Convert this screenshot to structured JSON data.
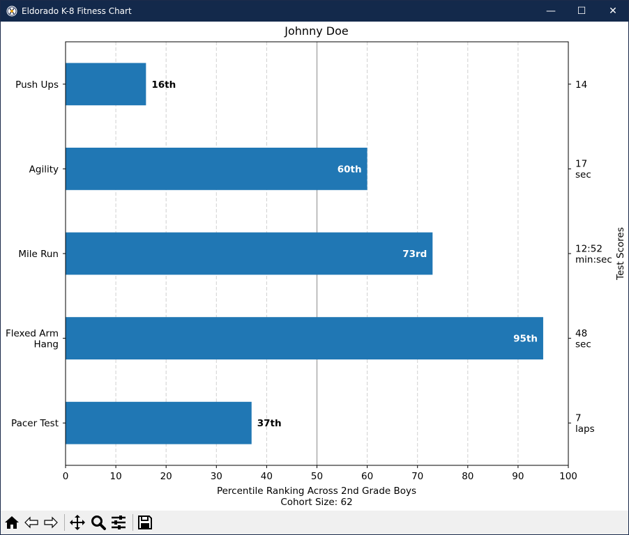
{
  "window": {
    "title": "Eldorado K-8 Fitness Chart",
    "minimize_glyph": "—",
    "maximize_glyph": "☐",
    "close_glyph": "✕",
    "icon": "app-logo-icon"
  },
  "toolbar": {
    "buttons": [
      {
        "name": "home-button",
        "icon": "home-icon"
      },
      {
        "name": "back-button",
        "icon": "arrow-left-icon"
      },
      {
        "name": "forward-button",
        "icon": "arrow-right-icon"
      },
      {
        "name": "pan-button",
        "icon": "move-icon"
      },
      {
        "name": "zoom-button",
        "icon": "zoom-icon"
      },
      {
        "name": "configure-subplots-button",
        "icon": "sliders-icon"
      },
      {
        "name": "save-button",
        "icon": "save-icon"
      }
    ]
  },
  "chart_data": {
    "type": "bar",
    "orientation": "horizontal",
    "title": "Johnny Doe",
    "xlabel_line1": "Percentile Ranking Across 2nd Grade Boys",
    "xlabel_line2": "Cohort Size: 62",
    "right_ylabel": "Test Scores",
    "xlim": [
      0,
      100
    ],
    "xticks": [
      0,
      10,
      20,
      30,
      40,
      50,
      60,
      70,
      80,
      90,
      100
    ],
    "grid": "vertical dashed",
    "reference_line": 50,
    "bar_color": "#2077b4",
    "categories": [
      {
        "label": [
          "Push Ups"
        ],
        "value": 16,
        "value_label": "16th",
        "label_inside": false,
        "score": [
          "14"
        ]
      },
      {
        "label": [
          "Agility"
        ],
        "value": 60,
        "value_label": "60th",
        "label_inside": true,
        "score": [
          "17",
          "sec"
        ]
      },
      {
        "label": [
          "Mile Run"
        ],
        "value": 73,
        "value_label": "73rd",
        "label_inside": true,
        "score": [
          "12:52",
          "min:sec"
        ]
      },
      {
        "label": [
          "Flexed Arm",
          "Hang"
        ],
        "value": 95,
        "value_label": "95th",
        "label_inside": true,
        "score": [
          "48",
          "sec"
        ]
      },
      {
        "label": [
          "Pacer Test"
        ],
        "value": 37,
        "value_label": "37th",
        "label_inside": false,
        "score": [
          "7",
          "laps"
        ]
      }
    ]
  }
}
